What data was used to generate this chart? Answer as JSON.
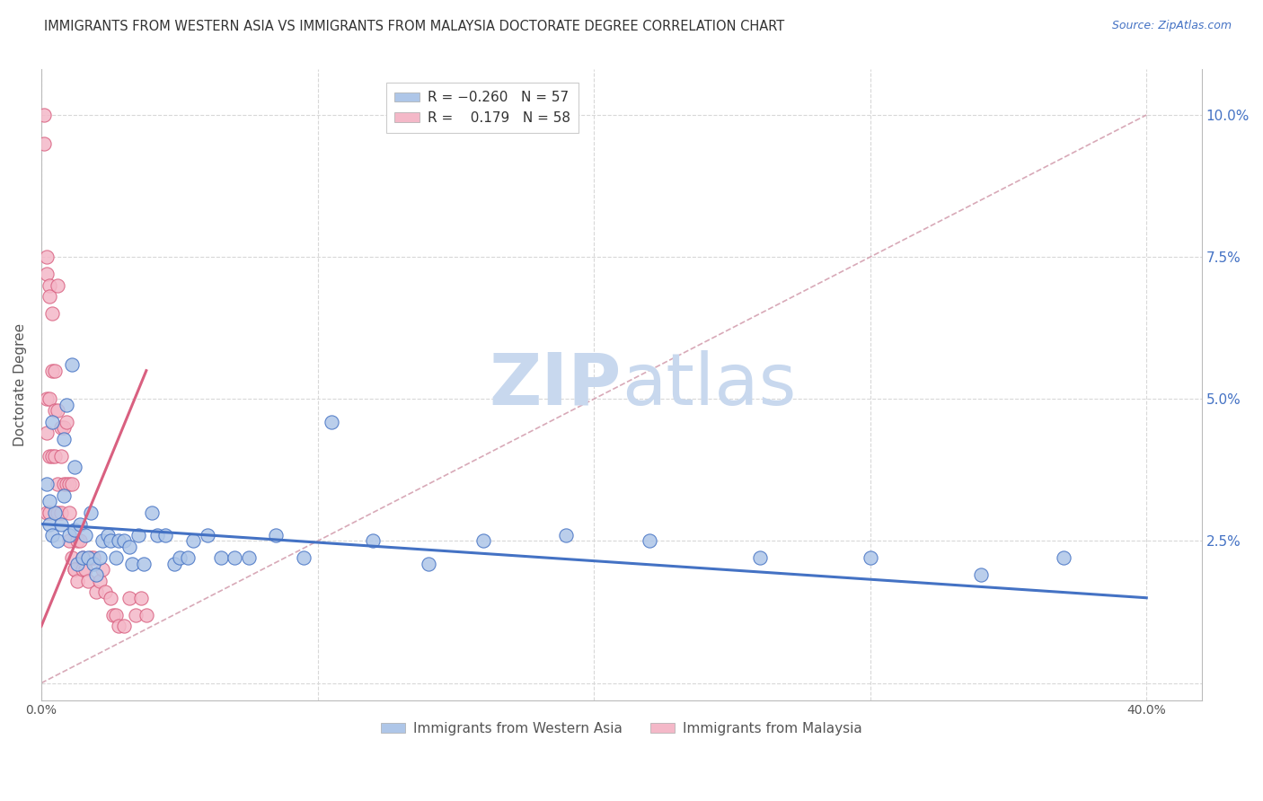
{
  "title": "IMMIGRANTS FROM WESTERN ASIA VS IMMIGRANTS FROM MALAYSIA DOCTORATE DEGREE CORRELATION CHART",
  "source": "Source: ZipAtlas.com",
  "ylabel": "Doctorate Degree",
  "watermark_zip": "ZIP",
  "watermark_atlas": "atlas",
  "blue_scatter_x": [
    0.002,
    0.003,
    0.004,
    0.004,
    0.005,
    0.006,
    0.007,
    0.008,
    0.009,
    0.01,
    0.011,
    0.012,
    0.013,
    0.014,
    0.015,
    0.016,
    0.017,
    0.018,
    0.019,
    0.02,
    0.021,
    0.022,
    0.024,
    0.025,
    0.027,
    0.028,
    0.03,
    0.032,
    0.033,
    0.035,
    0.037,
    0.04,
    0.042,
    0.045,
    0.048,
    0.05,
    0.053,
    0.055,
    0.06,
    0.065,
    0.07,
    0.075,
    0.085,
    0.095,
    0.105,
    0.12,
    0.14,
    0.16,
    0.19,
    0.22,
    0.26,
    0.3,
    0.34,
    0.37,
    0.008,
    0.012,
    0.003
  ],
  "blue_scatter_y": [
    0.035,
    0.028,
    0.026,
    0.046,
    0.03,
    0.025,
    0.028,
    0.043,
    0.049,
    0.026,
    0.056,
    0.027,
    0.021,
    0.028,
    0.022,
    0.026,
    0.022,
    0.03,
    0.021,
    0.019,
    0.022,
    0.025,
    0.026,
    0.025,
    0.022,
    0.025,
    0.025,
    0.024,
    0.021,
    0.026,
    0.021,
    0.03,
    0.026,
    0.026,
    0.021,
    0.022,
    0.022,
    0.025,
    0.026,
    0.022,
    0.022,
    0.022,
    0.026,
    0.022,
    0.046,
    0.025,
    0.021,
    0.025,
    0.026,
    0.025,
    0.022,
    0.022,
    0.019,
    0.022,
    0.033,
    0.038,
    0.032
  ],
  "pink_scatter_x": [
    0.001,
    0.001,
    0.002,
    0.002,
    0.002,
    0.002,
    0.002,
    0.003,
    0.003,
    0.003,
    0.003,
    0.003,
    0.004,
    0.004,
    0.004,
    0.005,
    0.005,
    0.005,
    0.006,
    0.006,
    0.006,
    0.006,
    0.007,
    0.007,
    0.007,
    0.008,
    0.008,
    0.009,
    0.009,
    0.01,
    0.01,
    0.01,
    0.011,
    0.011,
    0.012,
    0.012,
    0.013,
    0.013,
    0.014,
    0.015,
    0.015,
    0.016,
    0.017,
    0.018,
    0.019,
    0.02,
    0.021,
    0.022,
    0.023,
    0.025,
    0.026,
    0.027,
    0.028,
    0.03,
    0.032,
    0.034,
    0.036,
    0.038
  ],
  "pink_scatter_y": [
    0.1,
    0.095,
    0.075,
    0.072,
    0.05,
    0.044,
    0.03,
    0.07,
    0.068,
    0.05,
    0.04,
    0.03,
    0.065,
    0.055,
    0.04,
    0.055,
    0.048,
    0.04,
    0.07,
    0.048,
    0.035,
    0.03,
    0.045,
    0.04,
    0.03,
    0.045,
    0.035,
    0.046,
    0.035,
    0.035,
    0.03,
    0.025,
    0.035,
    0.022,
    0.02,
    0.02,
    0.025,
    0.018,
    0.025,
    0.022,
    0.02,
    0.02,
    0.018,
    0.022,
    0.022,
    0.016,
    0.018,
    0.02,
    0.016,
    0.015,
    0.012,
    0.012,
    0.01,
    0.01,
    0.015,
    0.012,
    0.015,
    0.012
  ],
  "blue_line_x": [
    0.0,
    0.4
  ],
  "blue_line_y": [
    0.028,
    0.015
  ],
  "pink_line_x": [
    0.0,
    0.038
  ],
  "pink_line_y": [
    0.01,
    0.055
  ],
  "diagonal_line_x": [
    0.0,
    0.4
  ],
  "diagonal_line_y": [
    0.0,
    0.1
  ],
  "xlim": [
    0.0,
    0.42
  ],
  "ylim": [
    -0.003,
    0.108
  ],
  "xticks": [
    0.0,
    0.1,
    0.2,
    0.3,
    0.4
  ],
  "xtick_labels": [
    "0.0%",
    "",
    "",
    "",
    "40.0%"
  ],
  "ytick_positions": [
    0.0,
    0.025,
    0.05,
    0.075,
    0.1
  ],
  "ytick_labels_right": [
    "",
    "2.5%",
    "5.0%",
    "7.5%",
    "10.0%"
  ],
  "blue_color": "#aec6e8",
  "pink_color": "#f4b8c8",
  "blue_line_color": "#4472c4",
  "pink_line_color": "#d96080",
  "diagonal_color": "#d4a0b0",
  "grid_color": "#d8d8d8",
  "title_fontsize": 10.5,
  "source_fontsize": 9,
  "watermark_zip_color": "#c8d8ee",
  "watermark_atlas_color": "#c8d8ee",
  "watermark_fontsize": 58,
  "legend_r_color": "#4472c4",
  "legend_text_color": "#333333"
}
